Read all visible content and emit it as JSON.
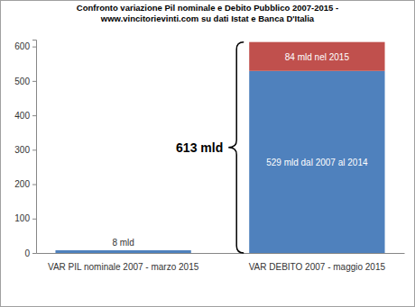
{
  "chart_data": {
    "type": "bar",
    "title": [
      "Confronto variazione  Pil nominale e Debito Pubblico 2007-2015 -",
      "www.vincitorievinti.com su dati Istat e Banca D'Italia"
    ],
    "categories": [
      "VAR PIL nominale 2007 - marzo 2015",
      "VAR DEBITO 2007 - maggio 2015"
    ],
    "series": [
      {
        "color": "#4f81bd",
        "values": [
          8,
          529
        ],
        "value_labels": [
          "8 mld",
          "529 mld dal 2007 al 2014"
        ]
      },
      {
        "color": "#c0504d",
        "values": [
          null,
          84
        ],
        "value_labels": [
          null,
          "84 mld nel 2015"
        ]
      }
    ],
    "stacked": true,
    "data_labels": true,
    "grid": false,
    "ylim": [
      0,
      620
    ],
    "yticks": [
      0,
      100,
      200,
      300,
      400,
      500,
      600
    ],
    "annotations": [
      {
        "text": "613 mld",
        "value": 613
      }
    ]
  }
}
